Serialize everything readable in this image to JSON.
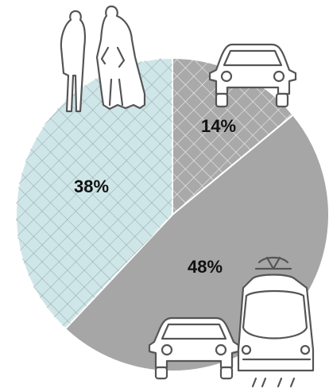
{
  "chart_data": {
    "type": "pie",
    "slices": [
      {
        "label": "14%",
        "value": 14,
        "color": "#a9a9a9",
        "pattern": "crosshatch-light"
      },
      {
        "label": "48%",
        "value": 48,
        "color": "#a6a6a6",
        "pattern": "none"
      },
      {
        "label": "38%",
        "value": 38,
        "color": "#cfe6e8",
        "pattern": "crosshatch-gray"
      }
    ],
    "start_angle_deg": 0,
    "direction": "clockwise",
    "icons": [
      "pedestrians-icon",
      "car-icon",
      "car-icon",
      "tram-icon"
    ]
  }
}
